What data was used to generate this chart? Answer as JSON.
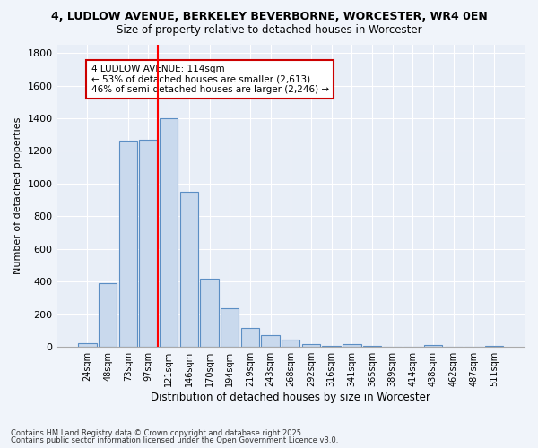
{
  "title1": "4, LUDLOW AVENUE, BERKELEY BEVERBORNE, WORCESTER, WR4 0EN",
  "title2": "Size of property relative to detached houses in Worcester",
  "xlabel": "Distribution of detached houses by size in Worcester",
  "ylabel": "Number of detached properties",
  "bar_color": "#c9d9ed",
  "bar_edge_color": "#5b8ec4",
  "bg_color": "#e8eef7",
  "grid_color": "#ffffff",
  "categories": [
    "24sqm",
    "48sqm",
    "73sqm",
    "97sqm",
    "121sqm",
    "146sqm",
    "170sqm",
    "194sqm",
    "219sqm",
    "243sqm",
    "268sqm",
    "292sqm",
    "316sqm",
    "341sqm",
    "365sqm",
    "389sqm",
    "414sqm",
    "438sqm",
    "462sqm",
    "487sqm",
    "511sqm"
  ],
  "values": [
    25,
    390,
    1265,
    1270,
    1400,
    950,
    420,
    235,
    115,
    70,
    45,
    20,
    5,
    15,
    5,
    0,
    0,
    10,
    0,
    0,
    5
  ],
  "annotation_text": "4 LUDLOW AVENUE: 114sqm\n← 53% of detached houses are smaller (2,613)\n46% of semi-detached houses are larger (2,246) →",
  "annotation_box_color": "#ffffff",
  "annotation_box_edge": "#cc0000",
  "footnote1": "Contains HM Land Registry data © Crown copyright and database right 2025.",
  "footnote2": "Contains public sector information licensed under the Open Government Licence v3.0.",
  "ylim": [
    0,
    1850
  ],
  "yticks": [
    0,
    200,
    400,
    600,
    800,
    1000,
    1200,
    1400,
    1600,
    1800
  ],
  "fig_bg": "#f0f4fa"
}
